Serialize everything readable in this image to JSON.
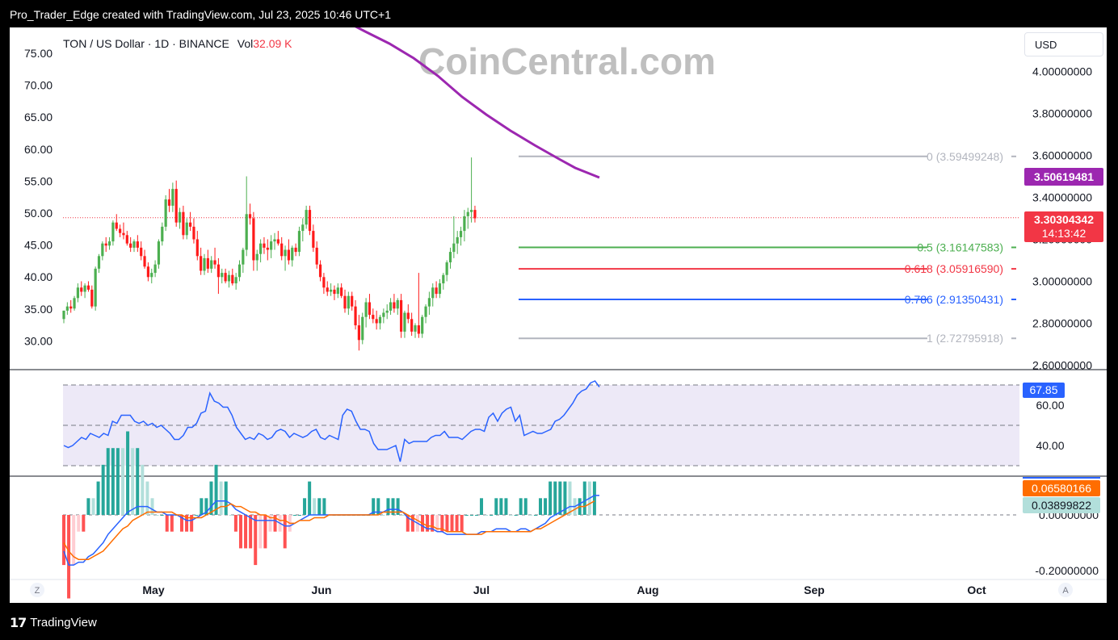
{
  "caption": "Pro_Trader_Edge created with TradingView.com, Jul 23, 2025 10:46 UTC+1",
  "footer_brand": "TradingView",
  "watermark": "CoinCentral.com",
  "header": {
    "pair": "TON / US Dollar · 1D · BINANCE",
    "vol_label": "Vol",
    "vol_value": "32.09 K"
  },
  "currency_button": "USD",
  "corner_left": "Z",
  "corner_right": "A",
  "colors": {
    "up": "#26a69a",
    "down": "#f23645",
    "candle_up": "#4caf50",
    "candle_down": "#ff1a1a",
    "ma": "#9c27b0",
    "fib_gray": "#b2b5be",
    "fib_green": "#4caf50",
    "fib_red": "#f23645",
    "fib_blue": "#2962ff",
    "rsi": "#2962ff",
    "macd": "#2962ff",
    "signal": "#ff6d00"
  },
  "chart_data": {
    "type": "candlestick",
    "x_axis": {
      "labels": [
        "May",
        "Jun",
        "Jul",
        "Aug",
        "Sep",
        "Oct"
      ]
    },
    "left_axis": {
      "labels": [
        "75.00",
        "70.00",
        "65.00",
        "60.00",
        "55.00",
        "50.00",
        "45.00",
        "40.00",
        "35.00",
        "30.00"
      ]
    },
    "right_axis": {
      "labels": [
        "4.00000000",
        "3.80000000",
        "3.60000000",
        "3.40000000",
        "3.20000000",
        "3.00000000",
        "2.80000000",
        "2.60000000"
      ],
      "range": [
        2.6,
        4.0
      ]
    },
    "candles_per_day": [
      [
        2.82,
        2.86,
        2.8,
        2.86
      ],
      [
        2.86,
        2.9,
        2.84,
        2.88
      ],
      [
        2.88,
        2.91,
        2.85,
        2.87
      ],
      [
        2.87,
        2.93,
        2.86,
        2.92
      ],
      [
        2.92,
        2.99,
        2.9,
        2.97
      ],
      [
        2.97,
        3.0,
        2.93,
        2.95
      ],
      [
        2.95,
        2.99,
        2.92,
        2.98
      ],
      [
        2.98,
        3.0,
        2.95,
        2.96
      ],
      [
        2.96,
        2.98,
        2.87,
        2.88
      ],
      [
        2.88,
        3.07,
        2.86,
        3.06
      ],
      [
        3.06,
        3.13,
        3.04,
        3.12
      ],
      [
        3.12,
        3.19,
        3.1,
        3.18
      ],
      [
        3.18,
        3.21,
        3.14,
        3.17
      ],
      [
        3.17,
        3.21,
        3.15,
        3.19
      ],
      [
        3.19,
        3.29,
        3.17,
        3.28
      ],
      [
        3.28,
        3.32,
        3.24,
        3.25
      ],
      [
        3.25,
        3.27,
        3.21,
        3.23
      ],
      [
        3.23,
        3.28,
        3.2,
        3.22
      ],
      [
        3.22,
        3.24,
        3.17,
        3.18
      ],
      [
        3.18,
        3.21,
        3.14,
        3.16
      ],
      [
        3.16,
        3.2,
        3.14,
        3.19
      ],
      [
        3.19,
        3.22,
        3.14,
        3.16
      ],
      [
        3.16,
        3.19,
        3.1,
        3.12
      ],
      [
        3.12,
        3.15,
        3.06,
        3.07
      ],
      [
        3.07,
        3.09,
        3.0,
        3.02
      ],
      [
        3.02,
        3.06,
        2.99,
        3.04
      ],
      [
        3.04,
        3.1,
        3.02,
        3.08
      ],
      [
        3.08,
        3.2,
        3.06,
        3.19
      ],
      [
        3.19,
        3.28,
        3.17,
        3.26
      ],
      [
        3.26,
        3.41,
        3.24,
        3.39
      ],
      [
        3.39,
        3.44,
        3.33,
        3.36
      ],
      [
        3.36,
        3.47,
        3.33,
        3.44
      ],
      [
        3.44,
        3.48,
        3.26,
        3.28
      ],
      [
        3.28,
        3.35,
        3.25,
        3.33
      ],
      [
        3.33,
        3.36,
        3.2,
        3.22
      ],
      [
        3.22,
        3.3,
        3.2,
        3.28
      ],
      [
        3.28,
        3.33,
        3.24,
        3.26
      ],
      [
        3.26,
        3.3,
        3.18,
        3.2
      ],
      [
        3.2,
        3.24,
        3.1,
        3.12
      ],
      [
        3.12,
        3.16,
        3.03,
        3.05
      ],
      [
        3.05,
        3.13,
        3.03,
        3.11
      ],
      [
        3.11,
        3.15,
        3.04,
        3.06
      ],
      [
        3.06,
        3.12,
        3.04,
        3.1
      ],
      [
        3.1,
        3.16,
        3.06,
        3.08
      ],
      [
        3.08,
        3.11,
        2.94,
        3.02
      ],
      [
        3.02,
        3.06,
        2.99,
        3.04
      ],
      [
        3.04,
        3.06,
        2.99,
        3.0
      ],
      [
        3.0,
        3.05,
        2.97,
        3.03
      ],
      [
        3.03,
        3.06,
        2.98,
        2.99
      ],
      [
        2.99,
        3.04,
        2.96,
        3.02
      ],
      [
        3.02,
        3.1,
        3.0,
        3.08
      ],
      [
        3.08,
        3.16,
        3.04,
        3.15
      ],
      [
        3.15,
        3.5,
        3.12,
        3.32
      ],
      [
        3.32,
        3.37,
        3.27,
        3.3
      ],
      [
        3.3,
        3.33,
        3.05,
        3.1
      ],
      [
        3.1,
        3.15,
        3.05,
        3.13
      ],
      [
        3.13,
        3.2,
        3.09,
        3.18
      ],
      [
        3.18,
        3.21,
        3.13,
        3.16
      ],
      [
        3.16,
        3.2,
        3.1,
        3.15
      ],
      [
        3.15,
        3.22,
        3.11,
        3.19
      ],
      [
        3.19,
        3.23,
        3.15,
        3.2
      ],
      [
        3.2,
        3.24,
        3.17,
        3.18
      ],
      [
        3.18,
        3.21,
        3.1,
        3.12
      ],
      [
        3.12,
        3.17,
        3.05,
        3.15
      ],
      [
        3.15,
        3.2,
        3.08,
        3.1
      ],
      [
        3.1,
        3.17,
        3.07,
        3.16
      ],
      [
        3.16,
        3.18,
        3.12,
        3.14
      ],
      [
        3.14,
        3.26,
        3.12,
        3.24
      ],
      [
        3.24,
        3.3,
        3.19,
        3.27
      ],
      [
        3.27,
        3.36,
        3.25,
        3.34
      ],
      [
        3.34,
        3.36,
        3.22,
        3.24
      ],
      [
        3.24,
        3.27,
        3.14,
        3.16
      ],
      [
        3.16,
        3.19,
        3.06,
        3.08
      ],
      [
        3.08,
        3.1,
        3.0,
        3.02
      ],
      [
        3.02,
        3.04,
        2.94,
        2.97
      ],
      [
        2.97,
        3.0,
        2.93,
        2.95
      ],
      [
        2.95,
        2.99,
        2.93,
        2.96
      ],
      [
        2.96,
        2.98,
        2.91,
        2.94
      ],
      [
        2.94,
        2.99,
        2.92,
        2.97
      ],
      [
        2.97,
        2.99,
        2.92,
        2.93
      ],
      [
        2.93,
        2.96,
        2.85,
        2.87
      ],
      [
        2.87,
        2.95,
        2.84,
        2.93
      ],
      [
        2.93,
        2.95,
        2.86,
        2.88
      ],
      [
        2.88,
        2.91,
        2.77,
        2.79
      ],
      [
        2.79,
        2.84,
        2.67,
        2.72
      ],
      [
        2.72,
        2.85,
        2.7,
        2.83
      ],
      [
        2.83,
        2.92,
        2.78,
        2.9
      ],
      [
        2.9,
        2.94,
        2.82,
        2.84
      ],
      [
        2.84,
        2.87,
        2.8,
        2.82
      ],
      [
        2.82,
        2.86,
        2.77,
        2.8
      ],
      [
        2.8,
        2.84,
        2.77,
        2.83
      ],
      [
        2.83,
        2.87,
        2.8,
        2.85
      ],
      [
        2.85,
        2.89,
        2.82,
        2.86
      ],
      [
        2.86,
        2.92,
        2.84,
        2.9
      ],
      [
        2.9,
        2.94,
        2.85,
        2.87
      ],
      [
        2.87,
        2.92,
        2.84,
        2.91
      ],
      [
        2.91,
        2.94,
        2.73,
        2.76
      ],
      [
        2.76,
        2.86,
        2.73,
        2.85
      ],
      [
        2.85,
        2.89,
        2.8,
        2.82
      ],
      [
        2.82,
        2.85,
        2.74,
        2.76
      ],
      [
        2.76,
        2.8,
        2.73,
        2.79
      ],
      [
        2.79,
        3.04,
        2.73,
        2.75
      ],
      [
        2.75,
        2.84,
        2.73,
        2.83
      ],
      [
        2.83,
        2.89,
        2.8,
        2.88
      ],
      [
        2.88,
        2.95,
        2.84,
        2.92
      ],
      [
        2.92,
        2.99,
        2.88,
        2.97
      ],
      [
        2.97,
        3.0,
        2.92,
        2.94
      ],
      [
        2.94,
        3.01,
        2.92,
        2.99
      ],
      [
        2.99,
        3.04,
        2.96,
        3.03
      ],
      [
        3.03,
        3.1,
        3.0,
        3.09
      ],
      [
        3.09,
        3.16,
        3.06,
        3.14
      ],
      [
        3.14,
        3.31,
        3.11,
        3.18
      ],
      [
        3.18,
        3.24,
        3.13,
        3.21
      ],
      [
        3.21,
        3.26,
        3.17,
        3.24
      ],
      [
        3.24,
        3.34,
        3.19,
        3.31
      ],
      [
        3.31,
        3.35,
        3.25,
        3.33
      ],
      [
        3.33,
        3.59,
        3.28,
        3.34
      ],
      [
        3.34,
        3.36,
        3.28,
        3.3
      ]
    ],
    "moving_average": {
      "name": "MA",
      "points": [
        [
          0,
          4.15
        ],
        [
          12,
          4.05
        ],
        [
          24,
          3.94
        ],
        [
          36,
          3.84
        ],
        [
          48,
          3.76
        ],
        [
          60,
          3.69
        ],
        [
          72,
          3.62
        ],
        [
          80,
          3.57
        ],
        [
          86,
          3.55
        ],
        [
          89,
          3.55
        ]
      ]
    },
    "fib_levels": [
      {
        "ratio": "0",
        "label": "0 (3.59499248)",
        "price": 3.59499248
      },
      {
        "ratio": "0.5",
        "label": "0.5 (3.16147583)",
        "price": 3.16147583
      },
      {
        "ratio": "0.618",
        "label": "0.618 (3.05916590)",
        "price": 3.0591659
      },
      {
        "ratio": "0.786",
        "label": "0.786 (2.91350431)",
        "price": 2.91350431
      },
      {
        "ratio": "1",
        "label": "1 (2.72795918)",
        "price": 2.72795918
      }
    ],
    "price_badges": {
      "ma_value": "3.50619481",
      "last_price": "3.30304342",
      "countdown": "14:13:42"
    },
    "rsi": {
      "labels": [
        "60.00",
        "40.00"
      ],
      "range": [
        30,
        72
      ],
      "value_badge": "67.85",
      "values": [
        40,
        39,
        40,
        42,
        44,
        43,
        46,
        45,
        44,
        46,
        45,
        52,
        51,
        55,
        55,
        55,
        52,
        51,
        52,
        50,
        51,
        49,
        50,
        48,
        46,
        43,
        43,
        45,
        49,
        49,
        51,
        56,
        57,
        66,
        62,
        61,
        59,
        59,
        55,
        49,
        46,
        43,
        44,
        43,
        46,
        45,
        43,
        44,
        47,
        48,
        47,
        44,
        46,
        45,
        44,
        45,
        47,
        48,
        44,
        43,
        45,
        44,
        43,
        55,
        58,
        57,
        52,
        48,
        48,
        47,
        41,
        38,
        38,
        38,
        39,
        40,
        32,
        43,
        41,
        42,
        42,
        42,
        42,
        44,
        45,
        45,
        47,
        44,
        44,
        44,
        43,
        45,
        47,
        48,
        48,
        47,
        54,
        56,
        52,
        56,
        58,
        59,
        52,
        55,
        45,
        46,
        47,
        46,
        46,
        47,
        48,
        52,
        53,
        55,
        58,
        61,
        65,
        67,
        68,
        71,
        72,
        69
      ],
      "note_overbought_band": [
        30,
        70
      ]
    },
    "macd": {
      "labels": [
        "0.00000000",
        "-0.20000000"
      ],
      "range": [
        -0.22,
        0.12
      ],
      "macd_badge": "0.06580166",
      "hist_badge": "0.03899822",
      "macd_values": [
        -0.13,
        -0.18,
        -0.18,
        -0.17,
        -0.17,
        -0.15,
        -0.14,
        -0.12,
        -0.1,
        -0.07,
        -0.05,
        -0.03,
        -0.01,
        0.01,
        0.02,
        0.03,
        0.03,
        0.03,
        0.02,
        0.01,
        0.01,
        0.0,
        0.0,
        0.0,
        -0.01,
        -0.02,
        -0.02,
        -0.01,
        0.0,
        0.01,
        0.03,
        0.05,
        0.05,
        0.05,
        0.04,
        0.02,
        0.01,
        0.0,
        -0.01,
        -0.02,
        -0.02,
        -0.02,
        -0.02,
        -0.02,
        -0.03,
        -0.04,
        -0.04,
        -0.03,
        -0.02,
        -0.01,
        0.0,
        0.0,
        0.0,
        0.0,
        0.0,
        0.0,
        0.0,
        0.0,
        0.0,
        0.0,
        0.0,
        0.0,
        0.0,
        0.01,
        0.01,
        0.01,
        0.02,
        0.02,
        0.02,
        0.01,
        -0.01,
        -0.02,
        -0.03,
        -0.04,
        -0.05,
        -0.05,
        -0.06,
        -0.06,
        -0.07,
        -0.07,
        -0.07,
        -0.07,
        -0.07,
        -0.07,
        -0.07,
        -0.06,
        -0.06,
        -0.06,
        -0.05,
        -0.05,
        -0.05,
        -0.06,
        -0.06,
        -0.05,
        -0.05,
        -0.06,
        -0.05,
        -0.04,
        -0.03,
        -0.01,
        0.0,
        0.01,
        0.02,
        0.03,
        0.03,
        0.04,
        0.05,
        0.06,
        0.07,
        0.07
      ],
      "signal_values": [
        -0.1,
        -0.13,
        -0.15,
        -0.16,
        -0.16,
        -0.16,
        -0.15,
        -0.14,
        -0.13,
        -0.11,
        -0.09,
        -0.07,
        -0.05,
        -0.04,
        -0.02,
        -0.01,
        0.0,
        0.01,
        0.01,
        0.01,
        0.01,
        0.01,
        0.01,
        0.0,
        0.0,
        -0.01,
        -0.01,
        -0.01,
        -0.01,
        0.0,
        0.01,
        0.02,
        0.03,
        0.03,
        0.04,
        0.03,
        0.03,
        0.02,
        0.01,
        0.01,
        0.0,
        0.0,
        -0.01,
        -0.01,
        -0.02,
        -0.02,
        -0.03,
        -0.03,
        -0.02,
        -0.02,
        -0.02,
        -0.01,
        -0.01,
        -0.01,
        0.0,
        0.0,
        0.0,
        0.0,
        0.0,
        0.0,
        0.0,
        0.0,
        0.0,
        0.0,
        0.0,
        0.01,
        0.01,
        0.01,
        0.01,
        0.01,
        0.0,
        -0.01,
        -0.02,
        -0.03,
        -0.04,
        -0.04,
        -0.05,
        -0.05,
        -0.06,
        -0.06,
        -0.06,
        -0.06,
        -0.07,
        -0.07,
        -0.07,
        -0.07,
        -0.06,
        -0.06,
        -0.06,
        -0.06,
        -0.06,
        -0.06,
        -0.06,
        -0.06,
        -0.06,
        -0.06,
        -0.05,
        -0.05,
        -0.04,
        -0.03,
        -0.02,
        -0.01,
        0.0,
        0.01,
        0.02,
        0.03,
        0.03,
        0.04,
        0.05
      ]
    }
  }
}
